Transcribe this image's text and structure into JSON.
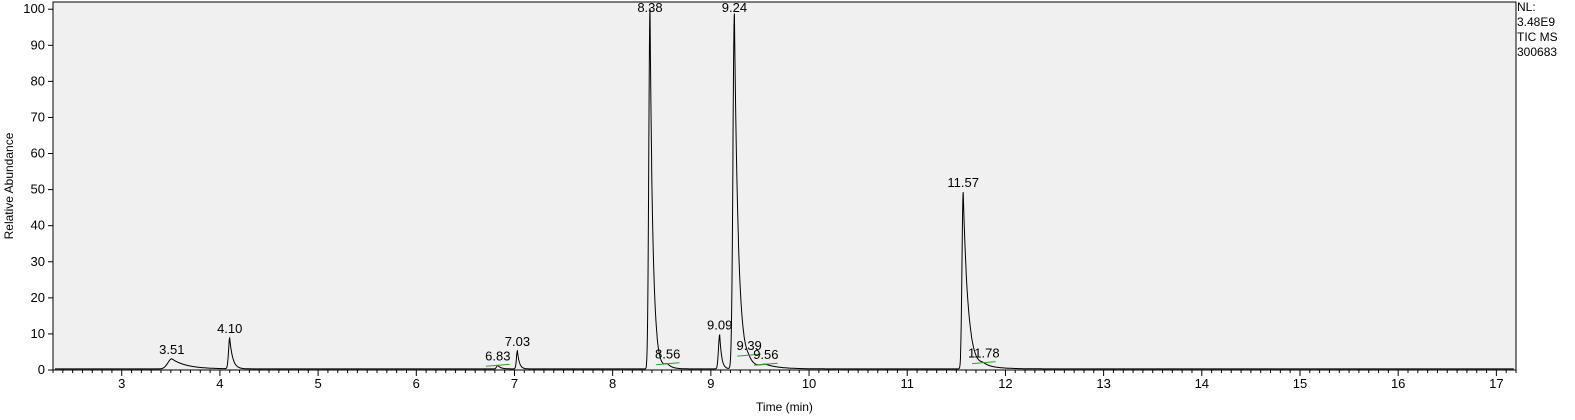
{
  "chart_data": {
    "type": "line",
    "xlabel": "Time (min)",
    "ylabel": "Relative Abundance",
    "xlim": [
      2.3,
      17.2
    ],
    "ylim": [
      0,
      102
    ],
    "x_ticks": [
      3,
      4,
      5,
      6,
      7,
      8,
      9,
      10,
      11,
      12,
      13,
      14,
      15,
      16,
      17
    ],
    "y_ticks": [
      0,
      10,
      20,
      30,
      40,
      50,
      60,
      70,
      80,
      90,
      100
    ],
    "info_lines": [
      "NL:",
      "3.48E9",
      "TIC MS",
      "300683"
    ],
    "colors": {
      "trace": "#000000",
      "plot_bg": "#f0f0f0",
      "baseline_marker": "#2ca02c"
    },
    "peaks": [
      {
        "label": "3.51",
        "x": 3.51,
        "y": 2.8,
        "w": 0.04,
        "tail": 0.15,
        "marker": false
      },
      {
        "label": "4.10",
        "x": 4.1,
        "y": 8.5,
        "w": 0.012,
        "tail": 0.03,
        "marker": false
      },
      {
        "label": "6.83",
        "x": 6.83,
        "y": 1.0,
        "w": 0.012,
        "tail": 0.03,
        "marker": true
      },
      {
        "label": "7.03",
        "x": 7.03,
        "y": 5.0,
        "w": 0.01,
        "tail": 0.02,
        "marker": false
      },
      {
        "label": "8.38",
        "x": 8.38,
        "y": 100,
        "w": 0.012,
        "tail": 0.03,
        "marker": false
      },
      {
        "label": "8.56",
        "x": 8.56,
        "y": 1.2,
        "w": 0.03,
        "tail": 0.05,
        "marker": true
      },
      {
        "label": "9.09",
        "x": 9.09,
        "y": 9.5,
        "w": 0.012,
        "tail": 0.02,
        "marker": false
      },
      {
        "label": "9.24",
        "x": 9.24,
        "y": 98.5,
        "w": 0.015,
        "tail": 0.04,
        "marker": false
      },
      {
        "label": "9.39",
        "x": 9.39,
        "y": 1.5,
        "w": 0.04,
        "tail": 0.1,
        "marker": true
      },
      {
        "label": "9.56",
        "x": 9.56,
        "y": 1.0,
        "w": 0.05,
        "tail": 0.15,
        "marker": true
      },
      {
        "label": "11.57",
        "x": 11.57,
        "y": 49,
        "w": 0.012,
        "tail": 0.05,
        "marker": false
      },
      {
        "label": "11.78",
        "x": 11.78,
        "y": 1.0,
        "w": 0.04,
        "tail": 0.15,
        "marker": true
      }
    ]
  }
}
